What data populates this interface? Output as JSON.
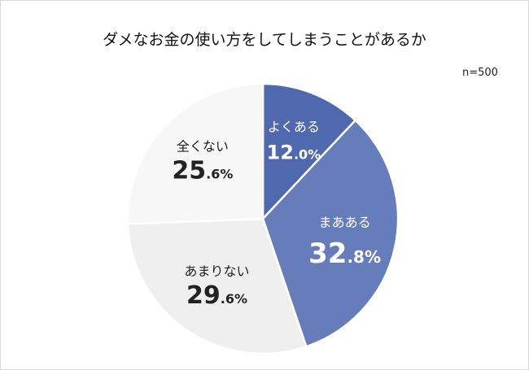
{
  "chart_data": {
    "type": "pie",
    "title": "ダメなお金の使い方をしてしまうことがあるか",
    "note": "n=500",
    "start": "top",
    "direction": "clockwise",
    "slices": [
      {
        "label": "よくある",
        "value": 12.0,
        "int": "12",
        "dec": ".0%",
        "color": "#5069ae",
        "text_color": "#ffffff"
      },
      {
        "label": "まあある",
        "value": 32.8,
        "int": "32",
        "dec": ".8%",
        "color": "#667dbb",
        "text_color": "#ffffff"
      },
      {
        "label": "あまりない",
        "value": 29.6,
        "int": "29",
        "dec": ".6%",
        "color": "#efefef",
        "text_color": "#222222"
      },
      {
        "label": "全くない",
        "value": 25.6,
        "int": "25",
        "dec": ".6%",
        "color": "#f7f7f7",
        "text_color": "#222222"
      }
    ]
  }
}
